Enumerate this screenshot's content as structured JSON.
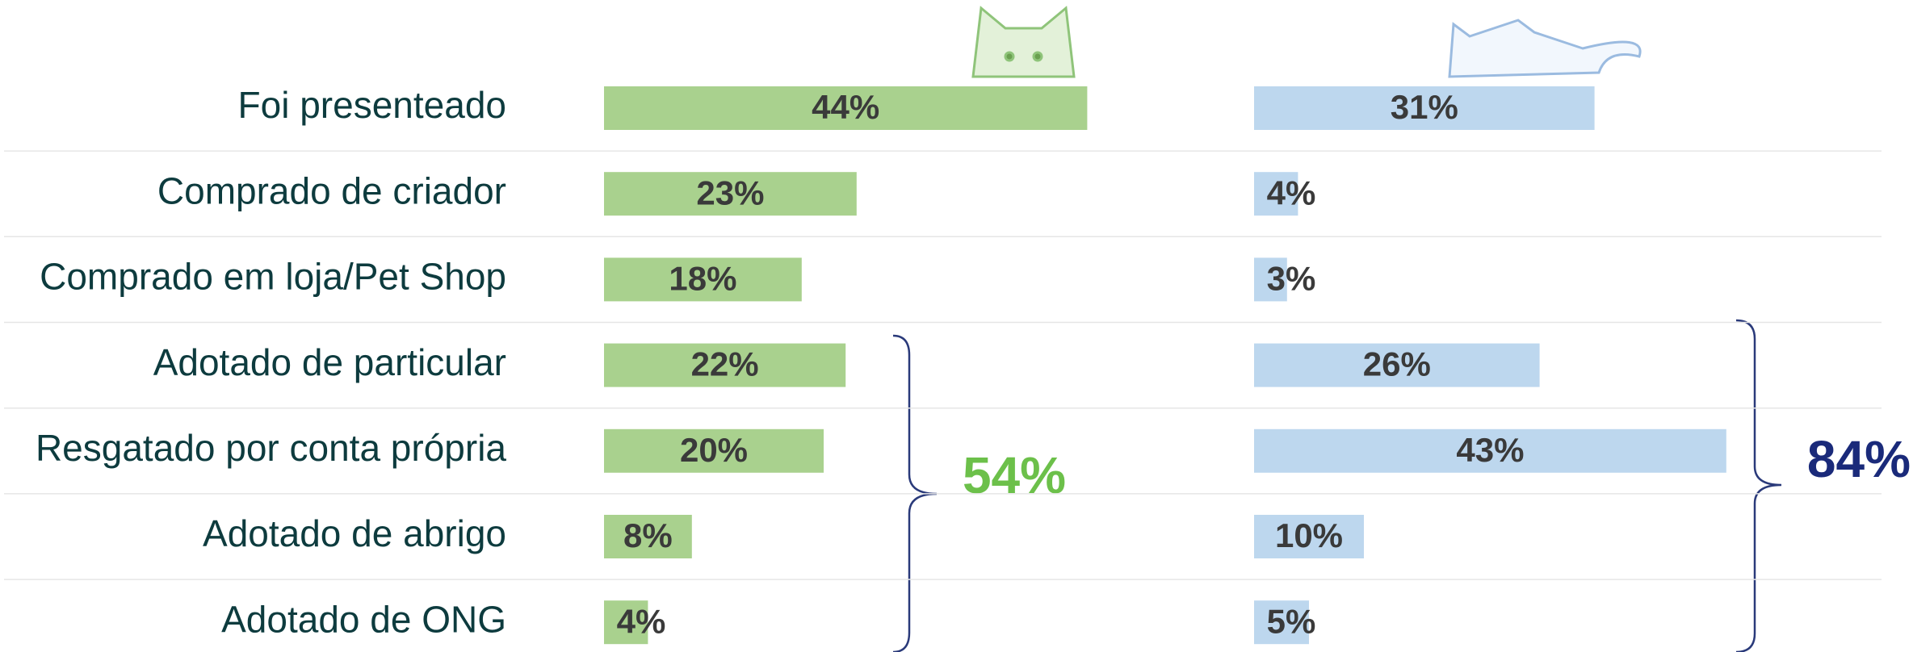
{
  "chart_data": {
    "type": "bar",
    "orientation": "horizontal",
    "categories": [
      "Foi presenteado",
      "Comprado de criador",
      "Comprado em loja/Pet Shop",
      "Adotado de particular",
      "Resgatado por conta própria",
      "Adotado de abrigo",
      "Adotado de ONG"
    ],
    "series": [
      {
        "color": "#a9d18e",
        "values": [
          44,
          23,
          18,
          22,
          20,
          8,
          4
        ],
        "value_labels": [
          "44%",
          "23%",
          "18%",
          "22%",
          "20%",
          "8%",
          "4%"
        ]
      },
      {
        "color": "#bdd7ee",
        "values": [
          31,
          4,
          3,
          26,
          43,
          10,
          5
        ],
        "value_labels": [
          "31%",
          "4%",
          "3%",
          "26%",
          "43%",
          "10%",
          "5%"
        ]
      }
    ],
    "xlim": [
      0,
      100
    ],
    "annotations": [
      {
        "text": "54%",
        "color": "#6cc04a"
      },
      {
        "text": "84%",
        "color": "#1a2a7a"
      }
    ]
  }
}
